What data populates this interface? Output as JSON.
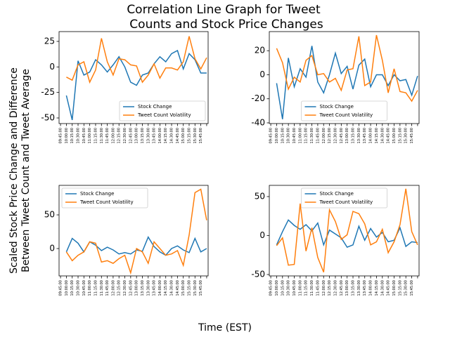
{
  "figure": {
    "title": [
      "Correlation Line Graph for Tweet",
      "Counts and Stock Price Changes"
    ],
    "xlabel": "Time (EST)",
    "ylabel": [
      "Scaled Stock Price Change and Difference",
      "Between Tweet Count and Tweet Average"
    ]
  },
  "chart_data": [
    {
      "type": "line",
      "categories": [
        "09:45:00",
        "10:00:00",
        "10:15:00",
        "10:30:00",
        "10:45:00",
        "11:00:00",
        "11:15:00",
        "11:30:00",
        "11:45:00",
        "12:00:00",
        "12:15:00",
        "12:30:00",
        "12:45:00",
        "13:00:00",
        "13:15:00",
        "13:30:00",
        "13:45:00",
        "14:00:00",
        "14:15:00",
        "14:30:00",
        "14:45:00",
        "15:00:00",
        "15:15:00",
        "15:30:00",
        "15:45:00",
        null
      ],
      "series": [
        {
          "name": "Stock Change",
          "color": "#1f77b4",
          "values": [
            null,
            -28,
            -52,
            6,
            -8,
            -5,
            7,
            2,
            -5,
            2,
            10,
            0,
            -15,
            -18,
            -8,
            -6,
            3,
            10,
            5,
            13,
            16,
            -2,
            13,
            7,
            -6,
            -6
          ]
        },
        {
          "name": "Tweet Count Volatility",
          "color": "#ff7f0e",
          "values": [
            null,
            -10,
            -13,
            2,
            5,
            -15,
            -3,
            28,
            5,
            -8,
            8,
            7,
            2,
            1,
            -15,
            -8,
            3,
            -11,
            -1,
            -1,
            -3,
            5,
            30,
            8,
            -2,
            9
          ]
        }
      ],
      "ylim": [
        -55.5,
        34.6
      ],
      "yticks": [
        -50,
        -25,
        0,
        25
      ],
      "legend": "lower right"
    },
    {
      "type": "line",
      "categories": [
        "09:45:00",
        "10:00:00",
        "10:15:00",
        "10:30:00",
        "10:45:00",
        "11:00:00",
        "11:15:00",
        "11:30:00",
        "11:45:00",
        "12:00:00",
        "12:15:00",
        "12:30:00",
        "12:45:00",
        "13:00:00",
        "13:15:00",
        "13:30:00",
        "13:45:00",
        "14:00:00",
        "14:15:00",
        "14:30:00",
        "14:45:00",
        "15:00:00",
        "15:15:00",
        "15:30:00",
        "15:45:00",
        null
      ],
      "series": [
        {
          "name": "Stock Change",
          "color": "#1f77b4",
          "values": [
            null,
            -7,
            -37,
            14,
            -10,
            5,
            -2,
            24,
            -6,
            -15,
            0,
            18,
            1,
            7,
            -12,
            8,
            13,
            -10,
            0,
            0,
            -9,
            0,
            -5,
            -4,
            -17,
            -1
          ]
        },
        {
          "name": "Tweet Count Volatility",
          "color": "#ff7f0e",
          "values": [
            null,
            22,
            10,
            -12,
            -2,
            -6,
            12,
            16,
            0,
            1,
            -6,
            -3,
            -13,
            4,
            5,
            32,
            -9,
            -6,
            33,
            12,
            -15,
            5,
            -14,
            -15,
            -22,
            -13
          ]
        }
      ],
      "ylim": [
        -40.6,
        35.9
      ],
      "yticks": [
        -40,
        -20,
        0,
        20
      ],
      "legend": "lower center"
    },
    {
      "type": "line",
      "categories": [
        "09:45:00",
        "10:00:00",
        "10:15:00",
        "10:30:00",
        "10:45:00",
        "11:00:00",
        "11:15:00",
        "11:30:00",
        "11:45:00",
        "12:00:00",
        "12:15:00",
        "12:30:00",
        "12:45:00",
        "13:00:00",
        "13:15:00",
        "13:30:00",
        "13:45:00",
        "14:00:00",
        "14:15:00",
        "14:30:00",
        "14:45:00",
        "15:00:00",
        "15:15:00",
        "15:30:00",
        "15:45:00",
        null
      ],
      "series": [
        {
          "name": "Stock Change",
          "color": "#1f77b4",
          "values": [
            null,
            -5,
            15,
            8,
            -5,
            10,
            5,
            -3,
            2,
            -2,
            -8,
            -6,
            -8,
            -2,
            -4,
            17,
            3,
            -5,
            -10,
            0,
            4,
            -2,
            -6,
            15,
            -5,
            0
          ]
        },
        {
          "name": "Tweet Count Volatility",
          "color": "#ff7f0e",
          "values": [
            null,
            -5,
            -18,
            -10,
            -5,
            10,
            8,
            -20,
            -18,
            -22,
            -15,
            -10,
            -36,
            0,
            -5,
            -22,
            10,
            0,
            -10,
            -8,
            -3,
            -25,
            20,
            83,
            88,
            42
          ]
        }
      ],
      "ylim": [
        -40.6,
        93.8
      ],
      "yticks": [
        0,
        50
      ],
      "legend": "upper left"
    },
    {
      "type": "line",
      "categories": [
        "09:45:00",
        "10:00:00",
        "10:15:00",
        "10:30:00",
        "10:45:00",
        "11:00:00",
        "11:15:00",
        "11:30:00",
        "11:45:00",
        "12:00:00",
        "12:15:00",
        "12:30:00",
        "12:45:00",
        "13:00:00",
        "13:15:00",
        "13:30:00",
        "13:45:00",
        "14:00:00",
        "14:15:00",
        "14:30:00",
        "14:45:00",
        "15:00:00",
        "15:15:00",
        "15:30:00",
        "15:45:00",
        null
      ],
      "series": [
        {
          "name": "Stock Change",
          "color": "#1f77b4",
          "values": [
            null,
            -12,
            5,
            20,
            13,
            8,
            14,
            6,
            16,
            -12,
            7,
            2,
            -3,
            -15,
            -12,
            12,
            -6,
            9,
            -2,
            4,
            -8,
            -6,
            10,
            -14,
            -8,
            -9
          ]
        },
        {
          "name": "Tweet Count Volatility",
          "color": "#ff7f0e",
          "values": [
            null,
            -13,
            -3,
            -38,
            -37,
            41,
            -20,
            10,
            -28,
            -47,
            33,
            18,
            -5,
            1,
            31,
            28,
            15,
            -12,
            -8,
            8,
            -22,
            -8,
            14,
            60,
            5,
            -12
          ]
        }
      ],
      "ylim": [
        -51.8,
        64.4
      ],
      "yticks": [
        -50,
        0,
        50
      ],
      "legend": "upper center"
    }
  ]
}
